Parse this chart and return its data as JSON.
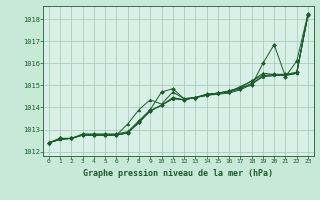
{
  "title": "Graphe pression niveau de la mer (hPa)",
  "background_color": "#c8e8d8",
  "plot_bg_color": "#d8f0e8",
  "grid_color": "#a0c8b0",
  "line_color": "#1a5c2a",
  "marker_color": "#1a5c2a",
  "xlim": [
    -0.5,
    23.5
  ],
  "ylim": [
    1011.8,
    1018.6
  ],
  "yticks": [
    1012,
    1013,
    1014,
    1015,
    1016,
    1017,
    1018
  ],
  "xticks": [
    0,
    1,
    2,
    3,
    4,
    5,
    6,
    7,
    8,
    9,
    10,
    11,
    12,
    13,
    14,
    15,
    16,
    17,
    18,
    19,
    20,
    21,
    22,
    23
  ],
  "series": [
    [
      1012.4,
      1012.6,
      1012.6,
      1012.75,
      1012.75,
      1012.75,
      1012.75,
      1012.85,
      1013.35,
      1013.85,
      1014.1,
      1014.45,
      1014.35,
      1014.45,
      1014.55,
      1014.65,
      1014.75,
      1014.9,
      1015.2,
      1015.45,
      1015.5,
      1015.5,
      1015.6,
      1018.2
    ],
    [
      1012.4,
      1012.55,
      1012.6,
      1012.75,
      1012.75,
      1012.75,
      1012.75,
      1012.85,
      1013.35,
      1013.85,
      1014.1,
      1014.4,
      1014.35,
      1014.45,
      1014.55,
      1014.65,
      1014.7,
      1014.85,
      1015.1,
      1015.4,
      1015.45,
      1015.45,
      1015.55,
      1018.2
    ],
    [
      1012.4,
      1012.55,
      1012.6,
      1012.75,
      1012.75,
      1012.75,
      1012.75,
      1012.85,
      1013.3,
      1013.85,
      1014.1,
      1014.4,
      1014.35,
      1014.45,
      1014.55,
      1014.6,
      1014.65,
      1014.8,
      1015.05,
      1015.4,
      1015.45,
      1015.45,
      1015.55,
      1018.2
    ],
    [
      1012.4,
      1012.55,
      1012.6,
      1012.75,
      1012.75,
      1012.75,
      1012.75,
      1013.25,
      1013.9,
      1014.35,
      1014.15,
      1014.7,
      1014.4,
      1014.45,
      1014.6,
      1014.65,
      1014.7,
      1014.95,
      1015.2,
      1015.55,
      1015.5,
      1015.5,
      1015.55,
      1018.2
    ],
    [
      1012.4,
      1012.6,
      1012.6,
      1012.8,
      1012.8,
      1012.8,
      1012.8,
      1012.9,
      1013.4,
      1013.9,
      1014.7,
      1014.85,
      1014.4,
      1014.45,
      1014.6,
      1014.65,
      1014.75,
      1014.9,
      1015.0,
      1016.0,
      1016.85,
      1015.4,
      1016.1,
      1018.25
    ]
  ]
}
